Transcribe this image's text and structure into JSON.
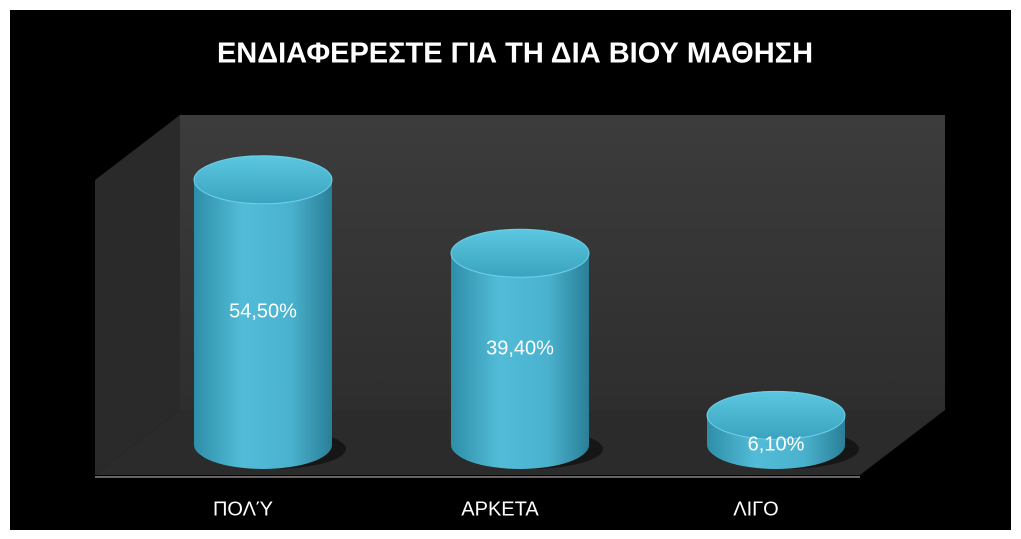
{
  "chart_data": {
    "type": "bar3d",
    "title": "ΕΝΔΙΑΦΕΡΕΣΤΕ ΓΙΑ ΤΗ ΔΙΑ ΒΙΟΥ ΜΑΘΗΣΗ",
    "categories": [
      "ΠΟΛΎ",
      "ΑΡΚΕΤΑ",
      "ΛΙΓΟ"
    ],
    "values": [
      54.5,
      39.4,
      6.1
    ],
    "value_labels": [
      "54,50%",
      "39,40%",
      "6,10%"
    ],
    "color": "#4bb3d0",
    "ylim": [
      0,
      60
    ]
  }
}
